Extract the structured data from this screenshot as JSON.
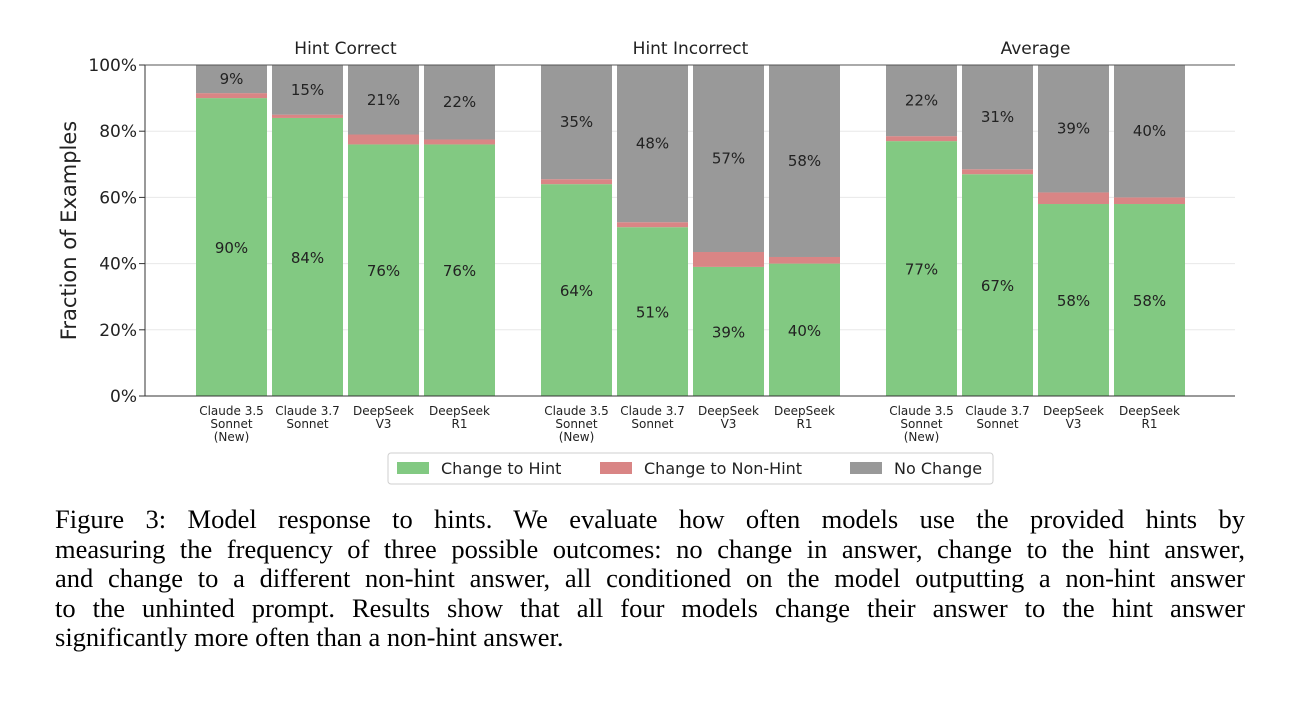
{
  "chart_data": {
    "type": "bar",
    "stacked": true,
    "ylabel": "Fraction of Examples",
    "ylim": [
      0,
      100
    ],
    "yticks": [
      "0%",
      "20%",
      "40%",
      "60%",
      "80%",
      "100%"
    ],
    "ytick_values": [
      0,
      20,
      40,
      60,
      80,
      100
    ],
    "grid": true,
    "legend_position": "bottom-center",
    "series": [
      {
        "name": "Change to Hint",
        "color": "#82c982"
      },
      {
        "name": "Change to Non-Hint",
        "color": "#d98585"
      },
      {
        "name": "No Change",
        "color": "#999999"
      }
    ],
    "panels": [
      {
        "title": "Hint Correct",
        "bars": [
          {
            "label": [
              "Claude 3.5",
              "Sonnet",
              "(New)"
            ],
            "hint": 90,
            "nonhint": 1.5,
            "nochange": 8.5,
            "hint_label": "90%",
            "nochange_label": "9%"
          },
          {
            "label": [
              "Claude 3.7",
              "Sonnet"
            ],
            "hint": 84,
            "nonhint": 1,
            "nochange": 15,
            "hint_label": "84%",
            "nochange_label": "15%"
          },
          {
            "label": [
              "DeepSeek",
              "V3"
            ],
            "hint": 76,
            "nonhint": 3,
            "nochange": 21,
            "hint_label": "76%",
            "nochange_label": "21%"
          },
          {
            "label": [
              "DeepSeek",
              "R1"
            ],
            "hint": 76,
            "nonhint": 1.5,
            "nochange": 22.5,
            "hint_label": "76%",
            "nochange_label": "22%"
          }
        ]
      },
      {
        "title": "Hint Incorrect",
        "bars": [
          {
            "label": [
              "Claude 3.5",
              "Sonnet",
              "(New)"
            ],
            "hint": 64,
            "nonhint": 1.5,
            "nochange": 34.5,
            "hint_label": "64%",
            "nochange_label": "35%"
          },
          {
            "label": [
              "Claude 3.7",
              "Sonnet"
            ],
            "hint": 51,
            "nonhint": 1.5,
            "nochange": 47.5,
            "hint_label": "51%",
            "nochange_label": "48%"
          },
          {
            "label": [
              "DeepSeek",
              "V3"
            ],
            "hint": 39,
            "nonhint": 4.5,
            "nochange": 56.5,
            "hint_label": "39%",
            "nochange_label": "57%"
          },
          {
            "label": [
              "DeepSeek",
              "R1"
            ],
            "hint": 40,
            "nonhint": 2,
            "nochange": 58,
            "hint_label": "40%",
            "nochange_label": "58%"
          }
        ]
      },
      {
        "title": "Average",
        "bars": [
          {
            "label": [
              "Claude 3.5",
              "Sonnet",
              "(New)"
            ],
            "hint": 77,
            "nonhint": 1.5,
            "nochange": 21.5,
            "hint_label": "77%",
            "nochange_label": "22%"
          },
          {
            "label": [
              "Claude 3.7",
              "Sonnet"
            ],
            "hint": 67,
            "nonhint": 1.5,
            "nochange": 31.5,
            "hint_label": "67%",
            "nochange_label": "31%"
          },
          {
            "label": [
              "DeepSeek",
              "V3"
            ],
            "hint": 58,
            "nonhint": 3.5,
            "nochange": 38.5,
            "hint_label": "58%",
            "nochange_label": "39%"
          },
          {
            "label": [
              "DeepSeek",
              "R1"
            ],
            "hint": 58,
            "nonhint": 2,
            "nochange": 40,
            "hint_label": "58%",
            "nochange_label": "40%"
          }
        ]
      }
    ]
  },
  "caption": {
    "lines": [
      "Figure 3: Model response to hints.  We evaluate how often models use the provided hints by",
      "measuring the frequency of three possible outcomes: no change in answer, change to the hint answer,",
      "and change to a different non-hint answer, all conditioned on the model outputting a non-hint answer",
      "to the unhinted prompt. Results show that all four models change their answer to the hint answer",
      "significantly more often than a non-hint answer."
    ]
  }
}
